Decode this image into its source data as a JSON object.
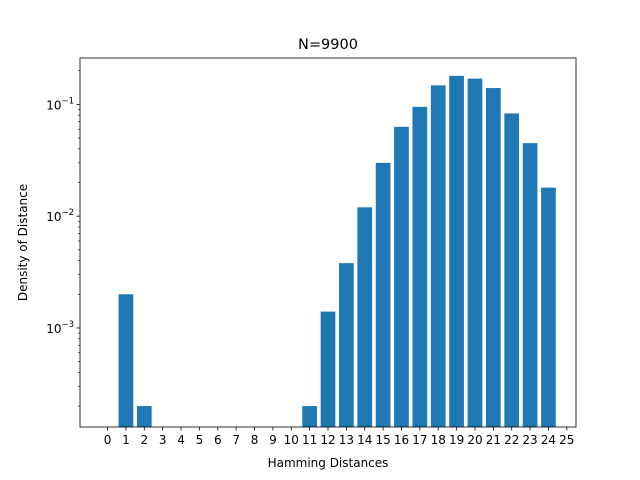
{
  "chart_data": {
    "type": "bar",
    "title": "N=9900",
    "xlabel": "Hamming Distances",
    "ylabel": "Density of Distance",
    "yscale": "log",
    "ylim": [
      0.00013,
      0.26
    ],
    "xlim": [
      -1.5,
      25.5
    ],
    "grid": false,
    "legend": "none",
    "bar_color": "#1f77b4",
    "categories": [
      "0",
      "1",
      "2",
      "3",
      "4",
      "5",
      "6",
      "7",
      "8",
      "9",
      "10",
      "11",
      "12",
      "13",
      "14",
      "15",
      "16",
      "17",
      "18",
      "19",
      "20",
      "21",
      "22",
      "23",
      "24",
      "25"
    ],
    "values": [
      0,
      0.002,
      0.0002,
      0,
      0,
      0,
      0,
      0,
      0,
      0,
      0,
      0.0002,
      0.0014,
      0.0038,
      0.012,
      0.03,
      0.063,
      0.095,
      0.148,
      0.18,
      0.17,
      0.14,
      0.083,
      0.045,
      0.018,
      0
    ],
    "y_ticks": [
      {
        "value": 0.001,
        "base": "10",
        "exp": "−3"
      },
      {
        "value": 0.01,
        "base": "10",
        "exp": "−2"
      },
      {
        "value": 0.1,
        "base": "10",
        "exp": "−1"
      }
    ]
  }
}
